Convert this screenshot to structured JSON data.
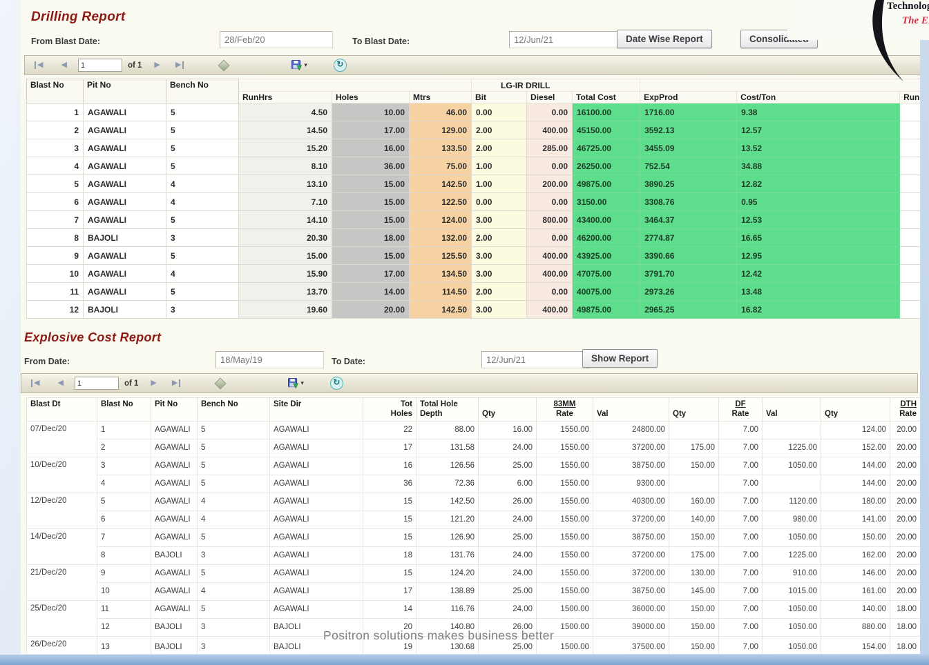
{
  "watermark": "Positron solutions makes business better",
  "logo": {
    "line1": "Technologies P",
    "line2": "The ER"
  },
  "drilling": {
    "title": "Drilling Report",
    "from_label": "From Blast Date:",
    "from_value": "28/Feb/20",
    "to_label": "To Blast Date:",
    "to_value": "12/Jun/21",
    "date_wise_button": "Date Wise Report",
    "consolidated_button": "Consolidated",
    "pager": {
      "page": "1",
      "of_label": "of 1"
    },
    "header_left": [
      "Blast No",
      "Pit No",
      "Bench No"
    ],
    "group_label": "LG-IR DRILL",
    "header_cols": [
      "RunHrs",
      "Holes",
      "Mtrs",
      "Bit",
      "Diesel",
      "Total Cost",
      "ExpProd",
      "Cost/Ton",
      "RunHrs"
    ],
    "rows": [
      [
        "1",
        "AGAWALI",
        "5",
        "4.50",
        "10.00",
        "46.00",
        "0.00",
        "0.00",
        "16100.00",
        "1716.00",
        "9.38",
        ""
      ],
      [
        "2",
        "AGAWALI",
        "5",
        "14.50",
        "17.00",
        "129.00",
        "2.00",
        "400.00",
        "45150.00",
        "3592.13",
        "12.57",
        ""
      ],
      [
        "3",
        "AGAWALI",
        "5",
        "15.20",
        "16.00",
        "133.50",
        "2.00",
        "285.00",
        "46725.00",
        "3455.09",
        "13.52",
        ""
      ],
      [
        "4",
        "AGAWALI",
        "5",
        "8.10",
        "36.00",
        "75.00",
        "1.00",
        "0.00",
        "26250.00",
        "752.54",
        "34.88",
        ""
      ],
      [
        "5",
        "AGAWALI",
        "4",
        "13.10",
        "15.00",
        "142.50",
        "1.00",
        "200.00",
        "49875.00",
        "3890.25",
        "12.82",
        ""
      ],
      [
        "6",
        "AGAWALI",
        "4",
        "7.10",
        "15.00",
        "122.50",
        "0.00",
        "0.00",
        "3150.00",
        "3308.76",
        "0.95",
        ""
      ],
      [
        "7",
        "AGAWALI",
        "5",
        "14.10",
        "15.00",
        "124.00",
        "3.00",
        "800.00",
        "43400.00",
        "3464.37",
        "12.53",
        ""
      ],
      [
        "8",
        "BAJOLI",
        "3",
        "20.30",
        "18.00",
        "132.00",
        "2.00",
        "0.00",
        "46200.00",
        "2774.87",
        "16.65",
        ""
      ],
      [
        "9",
        "AGAWALI",
        "5",
        "15.00",
        "15.00",
        "125.50",
        "3.00",
        "400.00",
        "43925.00",
        "3390.66",
        "12.95",
        ""
      ],
      [
        "10",
        "AGAWALI",
        "4",
        "15.90",
        "17.00",
        "134.50",
        "3.00",
        "400.00",
        "47075.00",
        "3791.70",
        "12.42",
        ""
      ],
      [
        "11",
        "AGAWALI",
        "5",
        "13.70",
        "14.00",
        "114.50",
        "2.00",
        "0.00",
        "40075.00",
        "2973.26",
        "13.48",
        ""
      ],
      [
        "12",
        "BAJOLI",
        "3",
        "19.60",
        "20.00",
        "142.50",
        "3.00",
        "400.00",
        "49875.00",
        "2965.25",
        "16.82",
        ""
      ]
    ]
  },
  "explosive": {
    "title": "Explosive Cost Report",
    "from_label": "From Date:",
    "from_value": "18/May/19",
    "to_label": "To Date:",
    "to_value": "12/Jun/21",
    "show_button": "Show Report",
    "pager": {
      "page": "1",
      "of_label": "of 1"
    },
    "columns": [
      {
        "label": "Blast Dt"
      },
      {
        "label": "Blast No"
      },
      {
        "label": "Pit No"
      },
      {
        "label": "Bench No"
      },
      {
        "label": "Site Dir"
      },
      {
        "label": "Tot",
        "label2": "Holes"
      },
      {
        "label": "Total Hole",
        "label2": "Depth"
      },
      {
        "label": "Qty"
      },
      {
        "group": "83MM",
        "label": "Rate"
      },
      {
        "label": "Val"
      },
      {
        "label": "Qty"
      },
      {
        "group": "DF",
        "label": "Rate"
      },
      {
        "label": "Val"
      },
      {
        "label": "Qty"
      },
      {
        "group": "DTH",
        "label": "Rate"
      }
    ],
    "rows": [
      [
        "07/Dec/20",
        "1",
        "AGAWALI",
        "5",
        "AGAWALI",
        "22",
        "88.00",
        "16.00",
        "1550.00",
        "24800.00",
        "",
        "7.00",
        "",
        "124.00",
        "20.00"
      ],
      [
        "",
        "2",
        "AGAWALI",
        "5",
        "AGAWALI",
        "17",
        "131.58",
        "24.00",
        "1550.00",
        "37200.00",
        "175.00",
        "7.00",
        "1225.00",
        "152.00",
        "20.00"
      ],
      [
        "10/Dec/20",
        "3",
        "AGAWALI",
        "5",
        "AGAWALI",
        "16",
        "126.56",
        "25.00",
        "1550.00",
        "38750.00",
        "150.00",
        "7.00",
        "1050.00",
        "144.00",
        "20.00"
      ],
      [
        "",
        "4",
        "AGAWALI",
        "5",
        "AGAWALI",
        "36",
        "72.36",
        "6.00",
        "1550.00",
        "9300.00",
        "",
        "7.00",
        "",
        "144.00",
        "20.00"
      ],
      [
        "12/Dec/20",
        "5",
        "AGAWALI",
        "4",
        "AGAWALI",
        "15",
        "142.50",
        "26.00",
        "1550.00",
        "40300.00",
        "160.00",
        "7.00",
        "1120.00",
        "180.00",
        "20.00"
      ],
      [
        "",
        "6",
        "AGAWALI",
        "4",
        "AGAWALI",
        "15",
        "121.20",
        "24.00",
        "1550.00",
        "37200.00",
        "140.00",
        "7.00",
        "980.00",
        "141.00",
        "20.00"
      ],
      [
        "14/Dec/20",
        "7",
        "AGAWALI",
        "5",
        "AGAWALI",
        "15",
        "126.90",
        "25.00",
        "1550.00",
        "38750.00",
        "150.00",
        "7.00",
        "1050.00",
        "150.00",
        "20.00"
      ],
      [
        "",
        "8",
        "BAJOLI",
        "3",
        "AGAWALI",
        "18",
        "131.76",
        "24.00",
        "1550.00",
        "37200.00",
        "175.00",
        "7.00",
        "1225.00",
        "162.00",
        "20.00"
      ],
      [
        "21/Dec/20",
        "9",
        "AGAWALI",
        "5",
        "AGAWALI",
        "15",
        "124.20",
        "24.00",
        "1550.00",
        "37200.00",
        "130.00",
        "7.00",
        "910.00",
        "146.00",
        "20.00"
      ],
      [
        "",
        "10",
        "AGAWALI",
        "4",
        "AGAWALI",
        "17",
        "138.89",
        "25.00",
        "1550.00",
        "38750.00",
        "145.00",
        "7.00",
        "1015.00",
        "161.00",
        "20.00"
      ],
      [
        "25/Dec/20",
        "11",
        "AGAWALI",
        "5",
        "AGAWALI",
        "14",
        "116.76",
        "24.00",
        "1500.00",
        "36000.00",
        "150.00",
        "7.00",
        "1050.00",
        "140.00",
        "18.00"
      ],
      [
        "",
        "12",
        "BAJOLI",
        "3",
        "BAJOLI",
        "20",
        "140.80",
        "26.00",
        "1500.00",
        "39000.00",
        "150.00",
        "7.00",
        "1050.00",
        "880.00",
        "18.00"
      ],
      [
        "26/Dec/20",
        "13",
        "BAJOLI",
        "3",
        "BAJOLI",
        "19",
        "130.68",
        "25.00",
        "1500.00",
        "37500.00",
        "150.00",
        "7.00",
        "1050.00",
        "154.00",
        "18.00"
      ]
    ]
  }
}
